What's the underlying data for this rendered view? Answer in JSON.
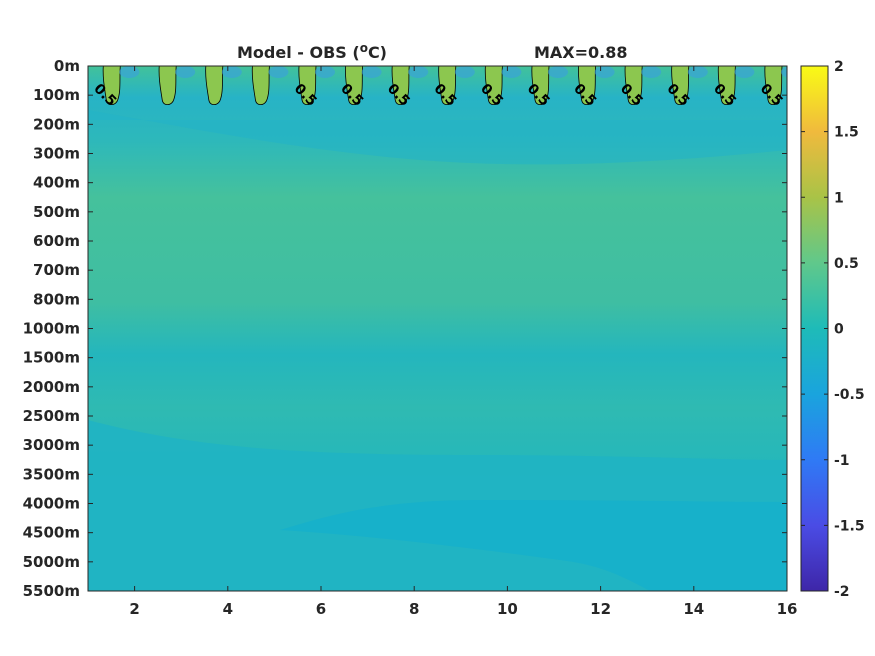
{
  "chart_data": {
    "type": "heatmap",
    "title": "Model - OBS (",
    "title_unit_superscript": "o",
    "title_unit_suffix": "C)",
    "max_label": "MAX=0.88",
    "xlabel": "",
    "ylabel": "",
    "xlim": [
      1,
      16
    ],
    "x_ticks": [
      "2",
      "4",
      "6",
      "8",
      "10",
      "12",
      "14",
      "16"
    ],
    "y_ticks": [
      "0m",
      "100m",
      "200m",
      "300m",
      "400m",
      "500m",
      "600m",
      "700m",
      "800m",
      "1000m",
      "1500m",
      "2000m",
      "2500m",
      "3000m",
      "3500m",
      "4000m",
      "4500m",
      "5000m",
      "5500m"
    ],
    "colorbar": {
      "colormap": "parula",
      "clim": [
        -2,
        2
      ],
      "tick_values": [
        2,
        1.5,
        1,
        0.5,
        0,
        -0.5,
        -1,
        -1.5,
        -2
      ],
      "tick_labels": [
        "2",
        "1.5",
        "1",
        "0.5",
        "0",
        "-0.5",
        "-1",
        "-1.5",
        "-2"
      ],
      "stops": [
        "#3e26a8",
        "#4a4ce5",
        "#2f7af5",
        "#1aa4dd",
        "#1ebbb8",
        "#60c88b",
        "#a9c347",
        "#f0ba3d",
        "#f9fb15"
      ]
    },
    "contour_level": 0.5,
    "contour_label": "0.5",
    "contour_label_x": [
      1.3,
      5.6,
      6.6,
      7.6,
      8.6,
      9.6,
      10.6,
      11.6,
      12.6,
      13.6,
      14.6,
      15.6
    ],
    "warm_lobe_x": [
      1.5,
      2.7,
      3.7,
      4.7,
      5.7,
      6.7,
      7.7,
      8.7,
      9.7,
      10.7,
      11.7,
      12.7,
      13.7,
      14.7,
      15.7
    ],
    "depth_band_values": [
      {
        "depth": "0m",
        "value": 0.1
      },
      {
        "depth": "100m",
        "value": 0.15
      },
      {
        "depth": "200m",
        "value": -0.1
      },
      {
        "depth": "300m",
        "value": -0.05
      },
      {
        "depth": "400m",
        "value": 0.1
      },
      {
        "depth": "500m",
        "value": 0.3
      },
      {
        "depth": "600m",
        "value": 0.3
      },
      {
        "depth": "700m",
        "value": 0.25
      },
      {
        "depth": "800m",
        "value": 0.2
      },
      {
        "depth": "1000m",
        "value": 0.05
      },
      {
        "depth": "1500m",
        "value": 0.15
      },
      {
        "depth": "2000m",
        "value": 0.1
      },
      {
        "depth": "2500m",
        "value": 0.05
      },
      {
        "depth": "3000m",
        "value": 0.05
      },
      {
        "depth": "3500m",
        "value": 0.05
      },
      {
        "depth": "4000m",
        "value": -0.05
      },
      {
        "depth": "4500m",
        "value": -0.05
      },
      {
        "depth": "5000m",
        "value": -0.05
      },
      {
        "depth": "5500m",
        "value": -0.05
      }
    ]
  }
}
